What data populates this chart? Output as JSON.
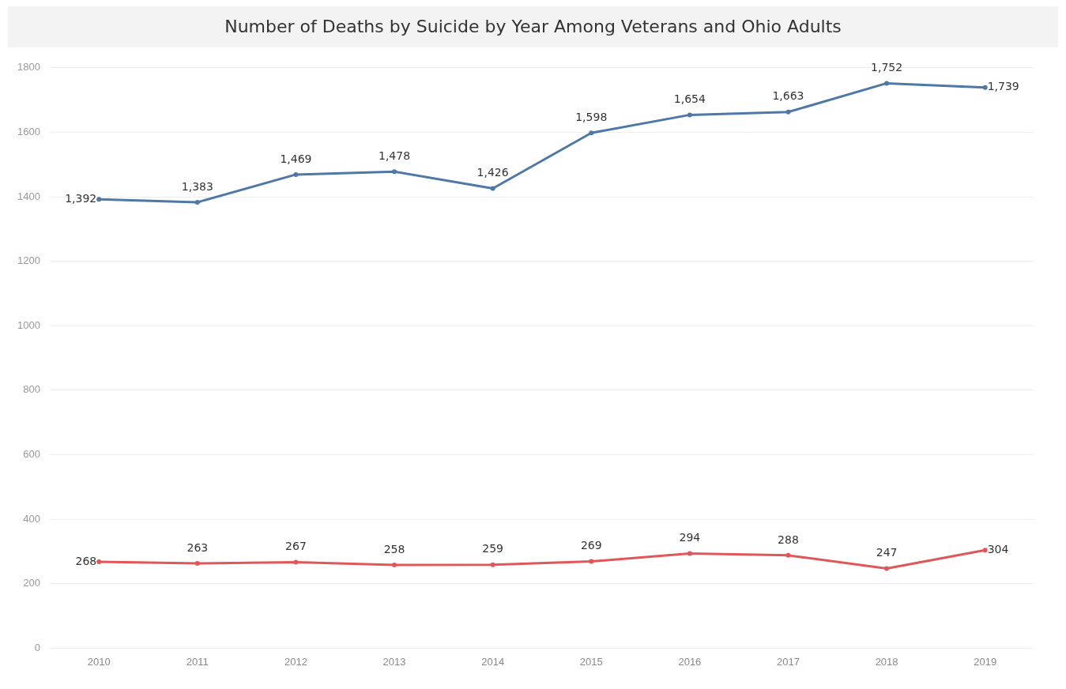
{
  "chart_data": {
    "type": "line",
    "title": "Number of Deaths by Suicide by Year Among Veterans and Ohio Adults",
    "categories": [
      "2010",
      "2011",
      "2012",
      "2013",
      "2014",
      "2015",
      "2016",
      "2017",
      "2018",
      "2019"
    ],
    "series": [
      {
        "color": "#4e79a7",
        "values": [
          1392,
          1383,
          1469,
          1478,
          1426,
          1598,
          1654,
          1663,
          1752,
          1739
        ],
        "value_labels": [
          "1,392",
          "1,383",
          "1,469",
          "1,478",
          "1,426",
          "1,598",
          "1,654",
          "1,663",
          "1,752",
          "1,739"
        ]
      },
      {
        "color": "#e15759",
        "values": [
          268,
          263,
          267,
          258,
          259,
          269,
          294,
          288,
          247,
          304
        ],
        "value_labels": [
          "268",
          "263",
          "267",
          "258",
          "259",
          "269",
          "294",
          "288",
          "247",
          "304"
        ]
      }
    ],
    "ylim": [
      0,
      1800
    ],
    "yticks": [
      0,
      200,
      400,
      600,
      800,
      1000,
      1200,
      1400,
      1600,
      1800
    ],
    "grid": "y",
    "legend": false,
    "marker": "circle",
    "line_style": "solid"
  }
}
